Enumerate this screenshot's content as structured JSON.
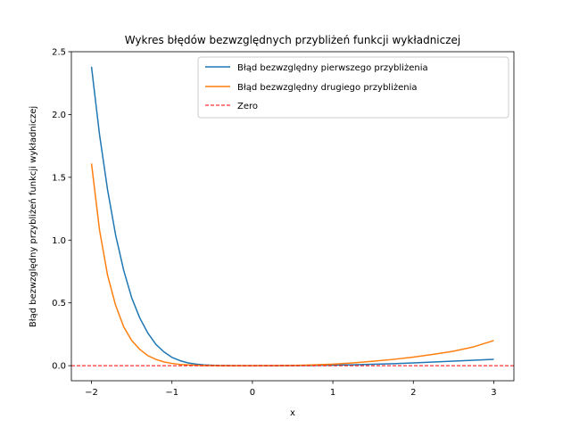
{
  "chart_data": {
    "type": "line",
    "title": "Wykres błędów bezwzględnych przybliżeń funkcji wykładniczej",
    "xlabel": "x",
    "ylabel": "Błąd bezwzględny przybliżeń funkcji wykładniczej",
    "xlim": [
      -2.25,
      3.25
    ],
    "ylim": [
      -0.12,
      2.5
    ],
    "xticks": [
      -2,
      -1,
      0,
      1,
      2,
      3
    ],
    "xtick_labels": [
      "−2",
      "−1",
      "0",
      "1",
      "2",
      "3"
    ],
    "yticks": [
      0.0,
      0.5,
      1.0,
      1.5,
      2.0,
      2.5
    ],
    "ytick_labels": [
      "0.0",
      "0.5",
      "1.0",
      "1.5",
      "2.0",
      "2.5"
    ],
    "grid": false,
    "legend_position": "top-right",
    "x": [
      -2.0,
      -1.9,
      -1.8,
      -1.7,
      -1.6,
      -1.5,
      -1.4,
      -1.3,
      -1.2,
      -1.1,
      -1.0,
      -0.9,
      -0.8,
      -0.7,
      -0.6,
      -0.5,
      -0.4,
      -0.3,
      -0.2,
      -0.1,
      0.0,
      0.25,
      0.5,
      0.75,
      1.0,
      1.25,
      1.5,
      1.75,
      2.0,
      2.25,
      2.5,
      2.75,
      3.0
    ],
    "series": [
      {
        "name": "Błąd bezwzględny pierwszego przybliżenia",
        "color": "#1f77b4",
        "style": "solid",
        "values": [
          2.38,
          1.84,
          1.4,
          1.04,
          0.76,
          0.54,
          0.38,
          0.26,
          0.17,
          0.11,
          0.066,
          0.04,
          0.022,
          0.012,
          0.006,
          0.003,
          0.001,
          0.0005,
          0.0002,
          0.0001,
          0.0,
          0.0,
          0.0005,
          0.002,
          0.004,
          0.007,
          0.011,
          0.016,
          0.022,
          0.029,
          0.036,
          0.043,
          0.05
        ]
      },
      {
        "name": "Błąd bezwzględny drugiego przybliżenia",
        "color": "#ff7f0e",
        "style": "solid",
        "values": [
          1.61,
          1.08,
          0.72,
          0.48,
          0.31,
          0.2,
          0.13,
          0.08,
          0.05,
          0.03,
          0.018,
          0.01,
          0.006,
          0.003,
          0.001,
          0.0005,
          0.0002,
          0.0001,
          0.0,
          0.0,
          0.0,
          0.0005,
          0.002,
          0.006,
          0.012,
          0.022,
          0.035,
          0.05,
          0.068,
          0.09,
          0.115,
          0.15,
          0.2
        ]
      },
      {
        "name": "Zero",
        "color": "#ff0000",
        "style": "dashed",
        "constant": 0
      }
    ]
  }
}
